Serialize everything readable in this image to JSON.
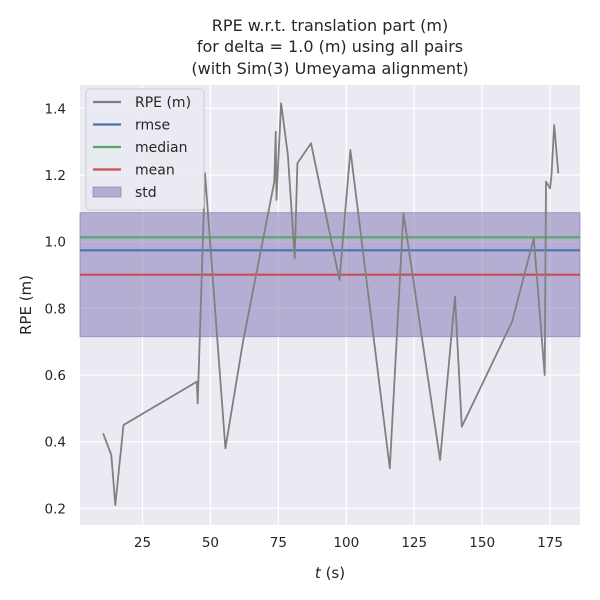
{
  "chart_data": {
    "type": "line",
    "title_lines": [
      "RPE w.r.t. translation part (m)",
      "for delta = 1.0 (m) using all pairs",
      "(with Sim(3) Umeyama alignment)"
    ],
    "xlabel_italic": "t",
    "xlabel_rest": " (s)",
    "ylabel": "RPE (m)",
    "xlim": [
      2,
      186
    ],
    "ylim": [
      0.15,
      1.47
    ],
    "x_ticks": [
      25,
      50,
      75,
      100,
      125,
      150,
      175
    ],
    "y_ticks": [
      0.2,
      0.4,
      0.6,
      0.8,
      1.0,
      1.2,
      1.4
    ],
    "x_tick_labels": [
      "25",
      "50",
      "75",
      "100",
      "125",
      "150",
      "175"
    ],
    "y_tick_labels": [
      "0.2",
      "0.4",
      "0.6",
      "0.8",
      "1.0",
      "1.2",
      "1.4"
    ],
    "grid": true,
    "legend_position": "top-left",
    "series": [
      {
        "name": "RPE (m)",
        "color": "#808080",
        "x": [
          10.5,
          13.5,
          15.0,
          18.0,
          45.0,
          45.3,
          48.0,
          55.5,
          62.0,
          73.5,
          74.0,
          74.3,
          74.7,
          76.0,
          78.5,
          81.0,
          82.0,
          87.0,
          97.5,
          101.5,
          116.0,
          121.0,
          134.5,
          140.0,
          142.5,
          161.0,
          169.0,
          173.0,
          173.5,
          175.0,
          175.5,
          176.5,
          178.0
        ],
        "y": [
          0.425,
          0.36,
          0.21,
          0.45,
          0.58,
          0.515,
          1.205,
          0.38,
          0.7,
          1.18,
          1.33,
          1.125,
          1.2,
          1.415,
          1.26,
          0.95,
          1.235,
          1.295,
          0.885,
          1.275,
          0.32,
          1.085,
          0.345,
          0.835,
          0.445,
          0.76,
          1.01,
          0.6,
          1.18,
          1.16,
          1.2,
          1.35,
          1.205
        ]
      }
    ],
    "statistics": {
      "rmse": 0.974,
      "median": 1.013,
      "mean": 0.901,
      "std": 0.186
    },
    "legend": [
      {
        "label": "RPE (m)",
        "kind": "line",
        "color": "#808080"
      },
      {
        "label": "rmse",
        "kind": "line",
        "color": "#4c72b0"
      },
      {
        "label": "median",
        "kind": "line",
        "color": "#55a868"
      },
      {
        "label": "mean",
        "kind": "line",
        "color": "#c44e52"
      },
      {
        "label": "std",
        "kind": "patch",
        "color": "#8172b2"
      }
    ],
    "colors": {
      "background": "#eaeaf2",
      "grid": "#ffffff",
      "rmse": "#4c72b0",
      "median": "#55a868",
      "mean": "#c44e52",
      "std": "#8172b2"
    }
  }
}
